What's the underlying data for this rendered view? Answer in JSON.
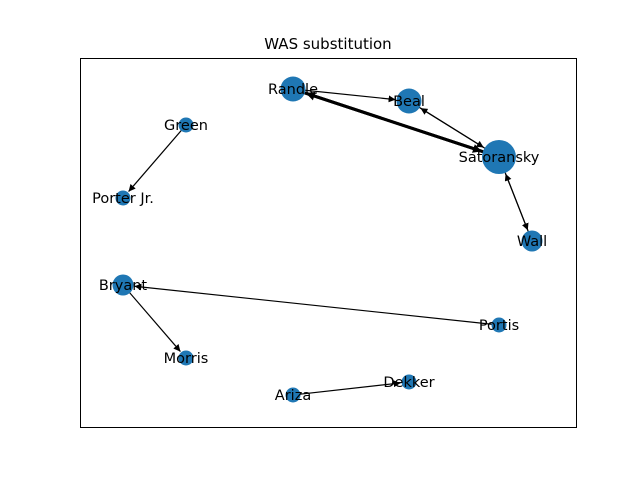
{
  "title": "WAS substitution",
  "colors": {
    "node": "#1f77b4",
    "edge": "#000000",
    "background": "#ffffff"
  },
  "nodes": [
    {
      "id": "randle",
      "label": "Randle",
      "size": "large"
    },
    {
      "id": "beal",
      "label": "Beal",
      "size": "large"
    },
    {
      "id": "satoransky",
      "label": "Satoransky",
      "size": "xlarge"
    },
    {
      "id": "green",
      "label": "Green",
      "size": "small"
    },
    {
      "id": "porter",
      "label": "Porter Jr.",
      "size": "small"
    },
    {
      "id": "wall",
      "label": "Wall",
      "size": "medium"
    },
    {
      "id": "bryant",
      "label": "Bryant",
      "size": "medium"
    },
    {
      "id": "portis",
      "label": "Portis",
      "size": "small"
    },
    {
      "id": "morris",
      "label": "Morris",
      "size": "small"
    },
    {
      "id": "ariza",
      "label": "Ariza",
      "size": "small"
    },
    {
      "id": "dekker",
      "label": "Dekker",
      "size": "small"
    }
  ],
  "edges": [
    {
      "from": "satoransky",
      "to": "randle",
      "weight": "heavy"
    },
    {
      "from": "randle",
      "to": "satoransky",
      "weight": "heavy"
    },
    {
      "from": "randle",
      "to": "beal",
      "weight": "normal"
    },
    {
      "from": "satoransky",
      "to": "beal",
      "weight": "normal"
    },
    {
      "from": "beal",
      "to": "satoransky",
      "weight": "normal"
    },
    {
      "from": "satoransky",
      "to": "wall",
      "weight": "normal"
    },
    {
      "from": "wall",
      "to": "satoransky",
      "weight": "normal"
    },
    {
      "from": "green",
      "to": "porter",
      "weight": "normal"
    },
    {
      "from": "portis",
      "to": "bryant",
      "weight": "normal"
    },
    {
      "from": "bryant",
      "to": "morris",
      "weight": "normal"
    },
    {
      "from": "ariza",
      "to": "dekker",
      "weight": "normal"
    }
  ]
}
